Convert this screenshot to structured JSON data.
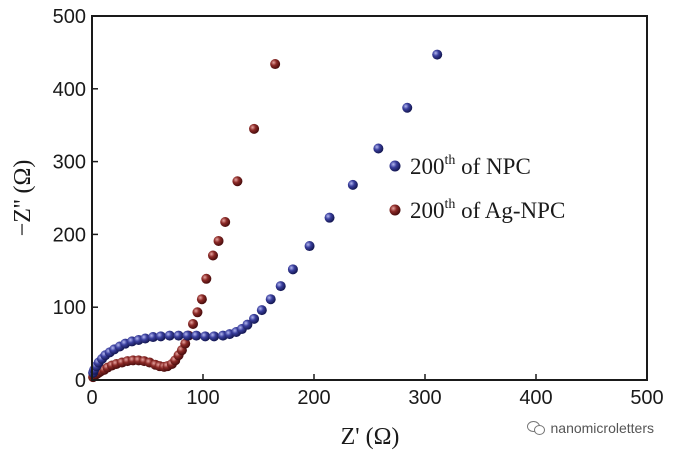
{
  "chart_data": {
    "type": "scatter",
    "xlabel": "Z' (Ω)",
    "ylabel": "−Z'' (Ω)",
    "xlim": [
      0,
      500
    ],
    "ylim": [
      0,
      500
    ],
    "xticks": [
      "0",
      "100",
      "200",
      "300",
      "400",
      "500"
    ],
    "yticks": [
      "0",
      "100",
      "200",
      "300",
      "400",
      "500"
    ],
    "legend_position": "right-center",
    "series": [
      {
        "name": "200th of NPC",
        "legend_main": "200",
        "legend_sup": "th",
        "legend_rest": " of NPC",
        "color": "#2b2f86",
        "x": [
          1,
          2,
          4,
          6,
          9,
          12,
          16,
          20,
          25,
          30,
          36,
          42,
          48,
          55,
          62,
          70,
          78,
          86,
          94,
          102,
          110,
          118,
          124,
          130,
          135,
          140,
          146,
          153,
          161,
          170,
          181,
          196,
          214,
          235,
          258,
          284,
          311
        ],
        "y": [
          10,
          14,
          19,
          24,
          29,
          34,
          38,
          42,
          46,
          50,
          53,
          55,
          57,
          59,
          60,
          61,
          61,
          61,
          61,
          60,
          60,
          61,
          63,
          66,
          70,
          76,
          84,
          96,
          111,
          129,
          152,
          184,
          223,
          268,
          318,
          374,
          447
        ]
      },
      {
        "name": "200th of Ag-NPC",
        "legend_main": "200",
        "legend_sup": "th",
        "legend_rest": " of Ag-NPC",
        "color": "#7a1d1d",
        "x": [
          1,
          2,
          4,
          6,
          8,
          11,
          14,
          18,
          22,
          27,
          32,
          37,
          42,
          47,
          52,
          57,
          61,
          65,
          68,
          72,
          75,
          78,
          81,
          84,
          87,
          91,
          95,
          99,
          103,
          109,
          114,
          120,
          131,
          146,
          165
        ],
        "y": [
          4,
          6,
          8,
          10,
          12,
          14,
          17,
          20,
          22,
          24,
          26,
          27,
          27,
          26,
          24,
          21,
          19,
          18,
          19,
          22,
          27,
          34,
          41,
          50,
          61,
          77,
          93,
          111,
          139,
          171,
          191,
          217,
          273,
          345,
          434
        ]
      }
    ]
  },
  "watermark": {
    "icon": "wechat-icon",
    "text": "nanomicroletters"
  }
}
